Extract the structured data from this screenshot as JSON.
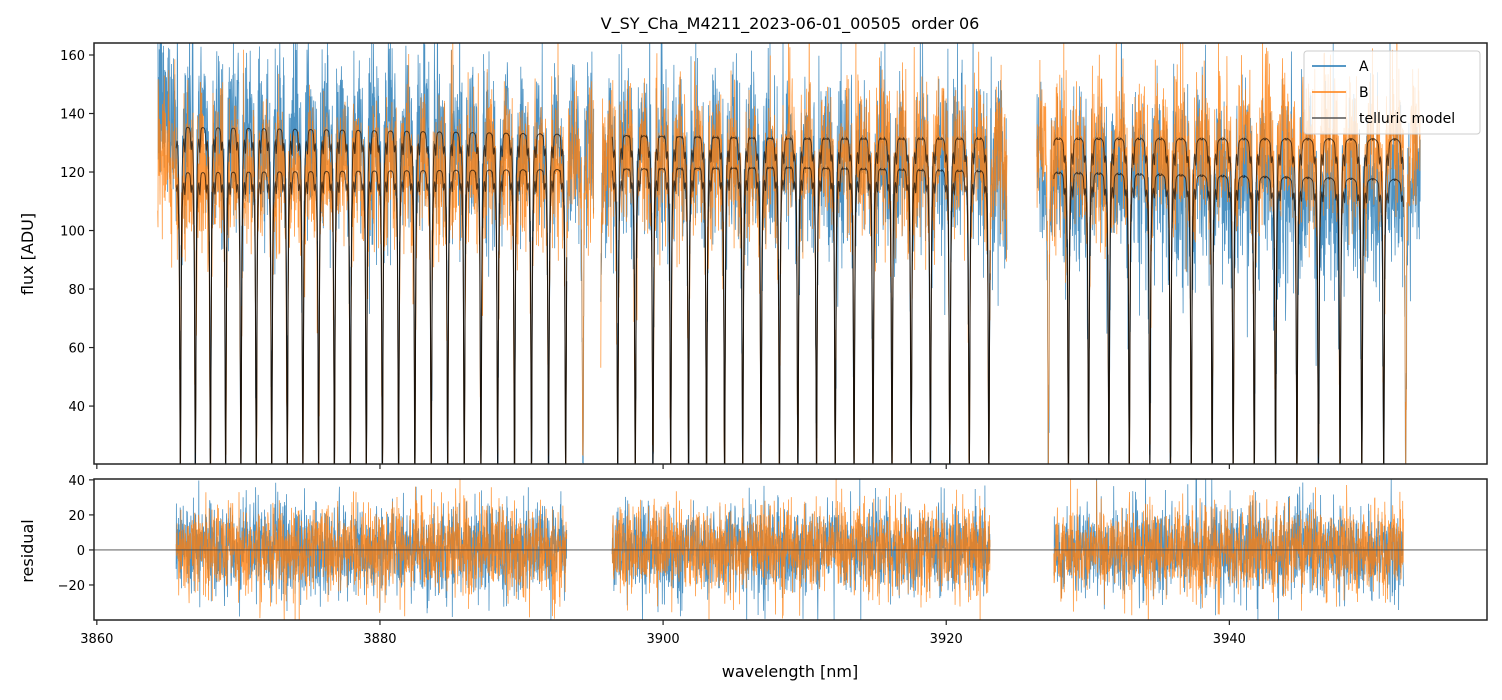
{
  "chart_data": {
    "type": "line",
    "title": "V_SY_Cha_M4211_2023-06-01_00505  order 06",
    "xlabel": "wavelength [nm]",
    "xlim": [
      3859.8,
      3958.2
    ],
    "xticks": [
      3860,
      3880,
      3900,
      3920,
      3940
    ],
    "panels": [
      {
        "name": "flux",
        "ylabel": "flux [ADU]",
        "ylim": [
          20.2,
          164.1
        ],
        "yticks": [
          40,
          60,
          80,
          100,
          120,
          140,
          160
        ]
      },
      {
        "name": "residual",
        "ylabel": "residual",
        "ylim": [
          -40,
          40.5
        ],
        "yticks": [
          -20,
          0,
          20,
          40
        ],
        "zero_line": 0
      }
    ],
    "legend": {
      "placement": "top-right",
      "entries": [
        "A",
        "B",
        "telluric model"
      ]
    },
    "series": [
      {
        "name": "A",
        "color": "#1f77b4",
        "continuum_start": 142,
        "continuum_end": 114,
        "noise_sigma": 13
      },
      {
        "name": "B",
        "color": "#ff7f0e",
        "continuum_start": 124,
        "continuum_end": 132,
        "noise_sigma": 11
      },
      {
        "name": "telluric model",
        "color": "#3a3a3a",
        "levels_upper": [
          138,
          133,
          132
        ],
        "levels_lower": [
          122,
          123,
          118
        ]
      }
    ],
    "data_ranges_nm": [
      [
        3864.3,
        3895.1
      ],
      [
        3895.6,
        3924.3
      ],
      [
        3926.4,
        3953.5
      ]
    ],
    "model_ranges_nm": [
      [
        3865.6,
        3893.2
      ],
      [
        3896.4,
        3923.1
      ],
      [
        3927.6,
        3952.3
      ]
    ],
    "absorption_lines": {
      "first_nm": 3865.9,
      "spacing_start_nm": 1.06,
      "spacing_end_nm": 1.57,
      "depth": 0.88
    },
    "residual_sigma": 13
  }
}
